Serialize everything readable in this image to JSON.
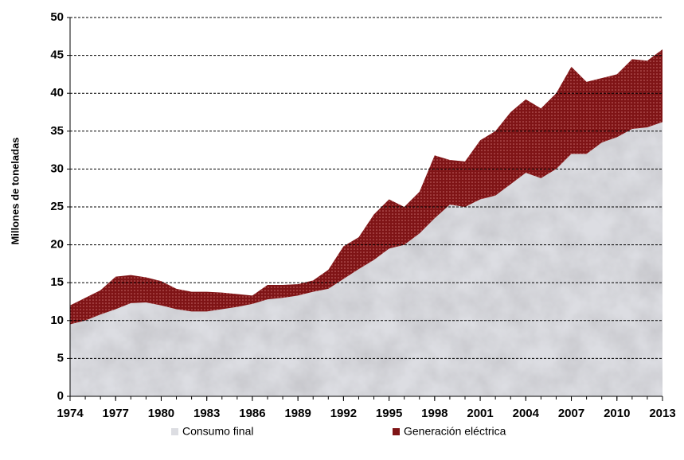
{
  "chart_data": {
    "type": "stacked_area",
    "y_label": "Millones de toneladas",
    "x": [
      1974,
      1975,
      1976,
      1977,
      1978,
      1979,
      1980,
      1981,
      1982,
      1983,
      1984,
      1985,
      1986,
      1987,
      1988,
      1989,
      1990,
      1991,
      1992,
      1993,
      1994,
      1995,
      1996,
      1997,
      1998,
      1999,
      2000,
      2001,
      2002,
      2003,
      2004,
      2005,
      2006,
      2007,
      2008,
      2009,
      2010,
      2011,
      2012,
      2013
    ],
    "series": [
      {
        "name": "Consumo final",
        "color": "#dcdde2",
        "values": [
          9.5,
          10,
          10.8,
          11.5,
          12.3,
          12.4,
          12,
          11.5,
          11.2,
          11.2,
          11.5,
          11.8,
          12.2,
          12.8,
          13,
          13.3,
          13.8,
          14.2,
          15.5,
          16.8,
          18,
          19.5,
          20,
          21.5,
          23.5,
          25.3,
          25,
          26,
          26.5,
          28,
          29.5,
          28.8,
          30,
          32,
          32,
          33.5,
          34.2,
          35.3,
          35.5,
          36.2
        ]
      },
      {
        "name": "Generación eléctrica",
        "color": "#7f1416",
        "values": [
          2.5,
          3,
          3.2,
          4.3,
          3.7,
          3.3,
          3.2,
          2.7,
          2.6,
          2.6,
          2.2,
          1.7,
          1.1,
          1.9,
          1.7,
          1.5,
          1.5,
          2.5,
          4.3,
          4.2,
          6,
          6.5,
          5,
          5.5,
          8.3,
          5.9,
          6,
          7.8,
          8.5,
          9.5,
          9.7,
          9.2,
          10,
          11.5,
          9.5,
          8.5,
          8.3,
          9.2,
          8.8,
          9.6
        ]
      }
    ],
    "xlim": [
      1974,
      2013
    ],
    "xticks": [
      1974,
      1977,
      1980,
      1983,
      1986,
      1989,
      1992,
      1995,
      1998,
      2001,
      2004,
      2007,
      2010,
      2013
    ],
    "ylim": [
      0,
      50
    ],
    "yticks": [
      0,
      5,
      10,
      15,
      20,
      25,
      30,
      35,
      40,
      45,
      50
    ],
    "grid": true,
    "legend": "bottom"
  }
}
